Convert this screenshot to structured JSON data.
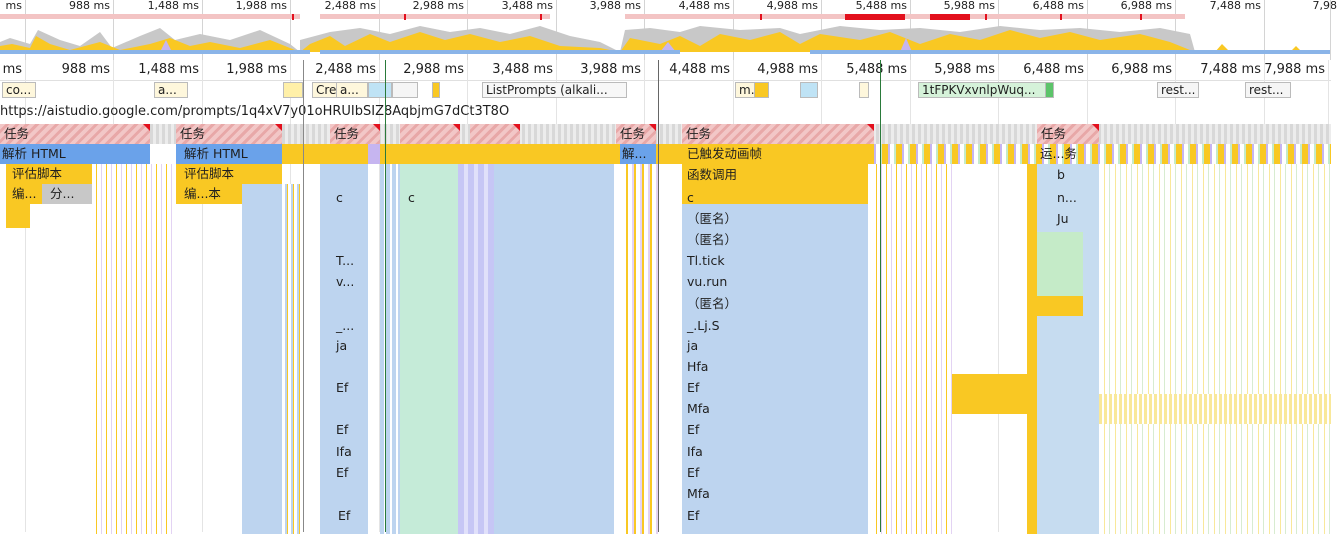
{
  "overview": {
    "ticks": [
      "988 ms",
      "1,488 ms",
      "1,988 ms",
      "2,488 ms",
      "2,988 ms",
      "3,488 ms",
      "3,988 ms",
      "4,488 ms",
      "4,988 ms",
      "5,488 ms",
      "5,988 ms",
      "6,488 ms",
      "6,988 ms",
      "7,488 ms",
      "7,98"
    ],
    "first_label": "ms"
  },
  "ruler": {
    "first_label": "ms",
    "ticks": [
      "988 ms",
      "1,488 ms",
      "1,988 ms",
      "2,488 ms",
      "2,988 ms",
      "3,488 ms",
      "3,988 ms",
      "4,488 ms",
      "4,988 ms",
      "5,488 ms",
      "5,988 ms",
      "6,488 ms",
      "6,988 ms",
      "7,488 ms",
      "7,988 ms"
    ]
  },
  "network": {
    "requests": [
      "co...",
      "a...",
      "Cre",
      "a...",
      "",
      "ListPrompts (alkali...",
      "m...",
      "",
      "1tFPKVxvnlpWuq...",
      "rest...",
      "rest..."
    ]
  },
  "main_thread_url": "https://aistudio.google.com/prompts/1q4xV7y01oHRUIbSIZ8AqbjmG7dCt3T8O",
  "tasks": {
    "label": "任务",
    "items": [
      "任务",
      "任务",
      "任务",
      "任务",
      "任务",
      "任务"
    ]
  },
  "flame": {
    "col1": [
      "解析 HTML",
      "评估脚本",
      "编...",
      "分..."
    ],
    "col2": [
      "解析 HTML",
      "评估脚本",
      "编...本"
    ],
    "col3": [
      "c",
      "T...",
      "v...",
      "_...",
      "ja",
      "Ef",
      "Ef",
      "Ifa",
      "Ef",
      "Ef"
    ],
    "col4": [
      "c"
    ],
    "col5": [
      "解..."
    ],
    "col6": [
      "已触发动画帧",
      "函数调用",
      "c",
      "（匿名）",
      "（匿名）",
      "Tl.tick",
      "vu.run",
      "（匿名）",
      "_.Lj.S",
      "ja",
      "Hfa",
      "Ef",
      "Mfa",
      "Ef",
      "Ifa",
      "Ef",
      "Mfa",
      "Ef"
    ],
    "col7": [
      "运...务",
      "b",
      "n...",
      "Ju"
    ]
  },
  "colors": {
    "task_red": "#e3101d",
    "parse_html": "#6aa2ea",
    "script_yellow": "#f9c823",
    "call_blue": "#bdd4ef",
    "purple": "#c6b5f0",
    "green": "#c5ebc8"
  }
}
